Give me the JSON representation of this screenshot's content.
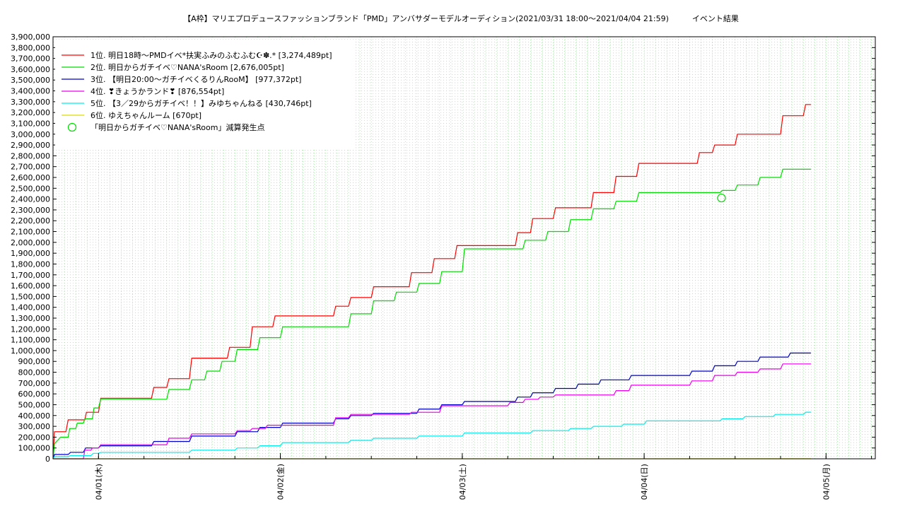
{
  "chart_data": {
    "type": "line",
    "title": "【A枠】マリエプロデュースファッションブランド「PMD」アンバサダーモデルオーディション(2021/03/31 18:00～2021/04/04 21:59)　　　イベント結果",
    "xlabel": "",
    "ylabel": "",
    "ylim": [
      0,
      3900000
    ],
    "yticks": [
      "0",
      "100,000",
      "200,000",
      "300,000",
      "400,000",
      "500,000",
      "600,000",
      "700,000",
      "800,000",
      "900,000",
      "1,000,000",
      "1,100,000",
      "1,200,000",
      "1,300,000",
      "1,400,000",
      "1,500,000",
      "1,600,000",
      "1,700,000",
      "1,800,000",
      "1,900,000",
      "2,000,000",
      "2,100,000",
      "2,200,000",
      "2,300,000",
      "2,400,000",
      "2,500,000",
      "2,600,000",
      "2,700,000",
      "2,800,000",
      "2,900,000",
      "3,000,000",
      "3,100,000",
      "3,200,000",
      "3,300,000",
      "3,400,000",
      "3,500,000",
      "3,600,000",
      "3,700,000",
      "3,800,000",
      "3,900,000"
    ],
    "xlim_hours": [
      -6,
      102.5
    ],
    "xticks": [
      {
        "label": "04/01(木)",
        "hour": 0
      },
      {
        "label": "04/02(金)",
        "hour": 24
      },
      {
        "label": "04/03(土)",
        "hour": 48
      },
      {
        "label": "04/04(日)",
        "hour": 72
      },
      {
        "label": "04/05(月)",
        "hour": 96
      }
    ],
    "grid": true,
    "legend_position": "top-left",
    "series": [
      {
        "name": "1位. 明日18時〜PMDイベ*扶実ふみのふむふむ☪✽.* [3,274,489pt]",
        "color": "#ff0000",
        "points": [
          [
            -6,
            0
          ],
          [
            -5.8,
            250000
          ],
          [
            -4.3,
            250000
          ],
          [
            -4,
            360000
          ],
          [
            -1.8,
            360000
          ],
          [
            -1.6,
            430000
          ],
          [
            0,
            430000
          ],
          [
            0.3,
            560000
          ],
          [
            7,
            560000
          ],
          [
            7.3,
            660000
          ],
          [
            9,
            660000
          ],
          [
            9.3,
            740000
          ],
          [
            12,
            740000
          ],
          [
            12.3,
            930000
          ],
          [
            17,
            930000
          ],
          [
            17.3,
            1030000
          ],
          [
            20,
            1030000
          ],
          [
            20.3,
            1220000
          ],
          [
            23,
            1220000
          ],
          [
            23.3,
            1320000
          ],
          [
            31,
            1320000
          ],
          [
            31.3,
            1410000
          ],
          [
            33,
            1410000
          ],
          [
            33.3,
            1490000
          ],
          [
            36,
            1490000
          ],
          [
            36.3,
            1590000
          ],
          [
            41,
            1590000
          ],
          [
            41.3,
            1720000
          ],
          [
            44,
            1720000
          ],
          [
            44.3,
            1850000
          ],
          [
            47,
            1850000
          ],
          [
            47.3,
            1970000
          ],
          [
            55,
            1970000
          ],
          [
            55.3,
            2090000
          ],
          [
            57,
            2090000
          ],
          [
            57.3,
            2220000
          ],
          [
            60,
            2220000
          ],
          [
            60.3,
            2320000
          ],
          [
            65,
            2320000
          ],
          [
            65.3,
            2460000
          ],
          [
            68,
            2460000
          ],
          [
            68.3,
            2610000
          ],
          [
            71,
            2610000
          ],
          [
            71.3,
            2730000
          ],
          [
            79,
            2730000
          ],
          [
            79.3,
            2830000
          ],
          [
            81,
            2830000
          ],
          [
            81.3,
            2900000
          ],
          [
            84,
            2900000
          ],
          [
            84.3,
            3000000
          ],
          [
            90,
            3000000
          ],
          [
            90.3,
            3170000
          ],
          [
            93,
            3170000
          ],
          [
            93.3,
            3274489
          ],
          [
            94,
            3274489
          ]
        ]
      },
      {
        "name": "2位. 明日からガチイベ♡NANA'sRoom [2,676,005pt]",
        "color": "#00dd00",
        "points": [
          [
            -6,
            0
          ],
          [
            -5.8,
            140000
          ],
          [
            -5,
            200000
          ],
          [
            -4,
            200000
          ],
          [
            -3.8,
            280000
          ],
          [
            -3,
            280000
          ],
          [
            -2.8,
            330000
          ],
          [
            -2,
            330000
          ],
          [
            -1.8,
            370000
          ],
          [
            -0.8,
            370000
          ],
          [
            -0.6,
            470000
          ],
          [
            0,
            470000
          ],
          [
            0.3,
            550000
          ],
          [
            9,
            550000
          ],
          [
            9.3,
            640000
          ],
          [
            12,
            640000
          ],
          [
            12.3,
            730000
          ],
          [
            14,
            730000
          ],
          [
            14.3,
            810000
          ],
          [
            16,
            810000
          ],
          [
            16.3,
            900000
          ],
          [
            18,
            900000
          ],
          [
            18.3,
            1010000
          ],
          [
            21,
            1010000
          ],
          [
            21.3,
            1120000
          ],
          [
            24,
            1120000
          ],
          [
            24.3,
            1220000
          ],
          [
            33,
            1220000
          ],
          [
            33.3,
            1340000
          ],
          [
            36,
            1340000
          ],
          [
            36.3,
            1460000
          ],
          [
            39,
            1460000
          ],
          [
            39.3,
            1540000
          ],
          [
            42,
            1540000
          ],
          [
            42.3,
            1620000
          ],
          [
            45,
            1620000
          ],
          [
            45.3,
            1730000
          ],
          [
            48,
            1730000
          ],
          [
            48.3,
            1940000
          ],
          [
            56,
            1940000
          ],
          [
            56.3,
            2020000
          ],
          [
            59,
            2020000
          ],
          [
            59.3,
            2100000
          ],
          [
            62,
            2100000
          ],
          [
            62.3,
            2210000
          ],
          [
            65,
            2210000
          ],
          [
            65.3,
            2310000
          ],
          [
            68,
            2310000
          ],
          [
            68.3,
            2380000
          ],
          [
            71,
            2380000
          ],
          [
            71.3,
            2460000
          ],
          [
            82,
            2460000
          ],
          [
            82.3,
            2480000
          ],
          [
            84,
            2480000
          ],
          [
            84.3,
            2530000
          ],
          [
            87,
            2530000
          ],
          [
            87.3,
            2600000
          ],
          [
            90,
            2600000
          ],
          [
            90.3,
            2676005
          ],
          [
            94,
            2676005
          ]
        ]
      },
      {
        "name": "3位. 【明日20:00〜ガチイベくるりんRooM】 [977,372pt]",
        "color": "#0000cc",
        "points": [
          [
            -6,
            0
          ],
          [
            -5.8,
            40000
          ],
          [
            -4,
            40000
          ],
          [
            -3.7,
            60000
          ],
          [
            -2,
            60000
          ],
          [
            -1.7,
            100000
          ],
          [
            0,
            100000
          ],
          [
            0.3,
            120000
          ],
          [
            7,
            120000
          ],
          [
            7.3,
            160000
          ],
          [
            12,
            160000
          ],
          [
            12.3,
            210000
          ],
          [
            18,
            210000
          ],
          [
            18.3,
            250000
          ],
          [
            21,
            250000
          ],
          [
            21.3,
            290000
          ],
          [
            24,
            290000
          ],
          [
            24.3,
            330000
          ],
          [
            31,
            330000
          ],
          [
            31.3,
            370000
          ],
          [
            33,
            370000
          ],
          [
            33.3,
            400000
          ],
          [
            36,
            400000
          ],
          [
            36.3,
            420000
          ],
          [
            42,
            420000
          ],
          [
            42.3,
            460000
          ],
          [
            45,
            460000
          ],
          [
            45.3,
            500000
          ],
          [
            48,
            500000
          ],
          [
            48.3,
            530000
          ],
          [
            55,
            530000
          ],
          [
            55.3,
            570000
          ],
          [
            57,
            570000
          ],
          [
            57.3,
            610000
          ],
          [
            60,
            610000
          ],
          [
            60.3,
            650000
          ],
          [
            63,
            650000
          ],
          [
            63.3,
            690000
          ],
          [
            66,
            690000
          ],
          [
            66.3,
            730000
          ],
          [
            70,
            730000
          ],
          [
            70.3,
            770000
          ],
          [
            78,
            770000
          ],
          [
            78.3,
            810000
          ],
          [
            81,
            810000
          ],
          [
            81.3,
            860000
          ],
          [
            84,
            860000
          ],
          [
            84.3,
            900000
          ],
          [
            87,
            900000
          ],
          [
            87.3,
            940000
          ],
          [
            91,
            940000
          ],
          [
            91.3,
            977372
          ],
          [
            94,
            977372
          ]
        ]
      },
      {
        "name": "4位. ❣きょうかランド❣ [876,554pt]",
        "color": "#ee00ee",
        "points": [
          [
            -6,
            0
          ],
          [
            -2,
            0
          ],
          [
            -1.8,
            80000
          ],
          [
            -1,
            80000
          ],
          [
            -0.8,
            100000
          ],
          [
            0,
            100000
          ],
          [
            0.3,
            130000
          ],
          [
            9,
            130000
          ],
          [
            9.3,
            190000
          ],
          [
            12,
            190000
          ],
          [
            12.3,
            230000
          ],
          [
            18,
            230000
          ],
          [
            18.3,
            260000
          ],
          [
            20,
            260000
          ],
          [
            20.3,
            280000
          ],
          [
            22,
            280000
          ],
          [
            22.3,
            310000
          ],
          [
            31,
            310000
          ],
          [
            31.3,
            380000
          ],
          [
            33,
            380000
          ],
          [
            33.3,
            410000
          ],
          [
            41,
            410000
          ],
          [
            41.3,
            430000
          ],
          [
            45,
            430000
          ],
          [
            45.3,
            490000
          ],
          [
            54,
            490000
          ],
          [
            54.3,
            520000
          ],
          [
            56,
            520000
          ],
          [
            56.3,
            550000
          ],
          [
            58,
            550000
          ],
          [
            58.3,
            570000
          ],
          [
            60,
            570000
          ],
          [
            60.3,
            590000
          ],
          [
            68,
            590000
          ],
          [
            68.3,
            630000
          ],
          [
            70,
            630000
          ],
          [
            70.3,
            680000
          ],
          [
            78,
            680000
          ],
          [
            78.3,
            720000
          ],
          [
            81,
            720000
          ],
          [
            81.3,
            770000
          ],
          [
            84,
            770000
          ],
          [
            84.3,
            800000
          ],
          [
            87,
            800000
          ],
          [
            87.3,
            830000
          ],
          [
            90,
            830000
          ],
          [
            90.3,
            876554
          ],
          [
            94,
            876554
          ]
        ]
      },
      {
        "name": "5位. 【3／29からガチイベ！！】みゆちゃんねる [430,746pt]",
        "color": "#00eeee",
        "points": [
          [
            -6,
            0
          ],
          [
            -5.8,
            20000
          ],
          [
            -4,
            20000
          ],
          [
            -3.7,
            30000
          ],
          [
            -1,
            30000
          ],
          [
            -0.7,
            50000
          ],
          [
            0,
            50000
          ],
          [
            0.3,
            60000
          ],
          [
            12,
            60000
          ],
          [
            12.3,
            80000
          ],
          [
            18,
            80000
          ],
          [
            18.3,
            100000
          ],
          [
            21,
            100000
          ],
          [
            21.3,
            120000
          ],
          [
            24,
            120000
          ],
          [
            24.3,
            150000
          ],
          [
            33,
            150000
          ],
          [
            33.3,
            170000
          ],
          [
            36,
            170000
          ],
          [
            36.3,
            190000
          ],
          [
            42,
            190000
          ],
          [
            42.3,
            210000
          ],
          [
            48,
            210000
          ],
          [
            48.3,
            240000
          ],
          [
            57,
            240000
          ],
          [
            57.3,
            260000
          ],
          [
            62,
            260000
          ],
          [
            62.3,
            280000
          ],
          [
            65,
            280000
          ],
          [
            65.3,
            300000
          ],
          [
            69,
            300000
          ],
          [
            69.3,
            320000
          ],
          [
            72,
            320000
          ],
          [
            72.3,
            350000
          ],
          [
            82,
            350000
          ],
          [
            82.3,
            370000
          ],
          [
            85,
            370000
          ],
          [
            85.3,
            390000
          ],
          [
            89,
            390000
          ],
          [
            89.3,
            410000
          ],
          [
            93,
            410000
          ],
          [
            93.3,
            430746
          ],
          [
            94,
            430746
          ]
        ]
      },
      {
        "name": "6位. ゆえちゃんルーム [670pt]",
        "color": "#dddd00",
        "points": [
          [
            -6,
            0
          ],
          [
            94,
            670
          ]
        ]
      }
    ],
    "annotations": [
      {
        "name": "「明日からガチイベ♡NANA'sRoom」減算発生点",
        "color": "#00dd00",
        "hour": 82.2,
        "value": 2410000
      }
    ]
  }
}
